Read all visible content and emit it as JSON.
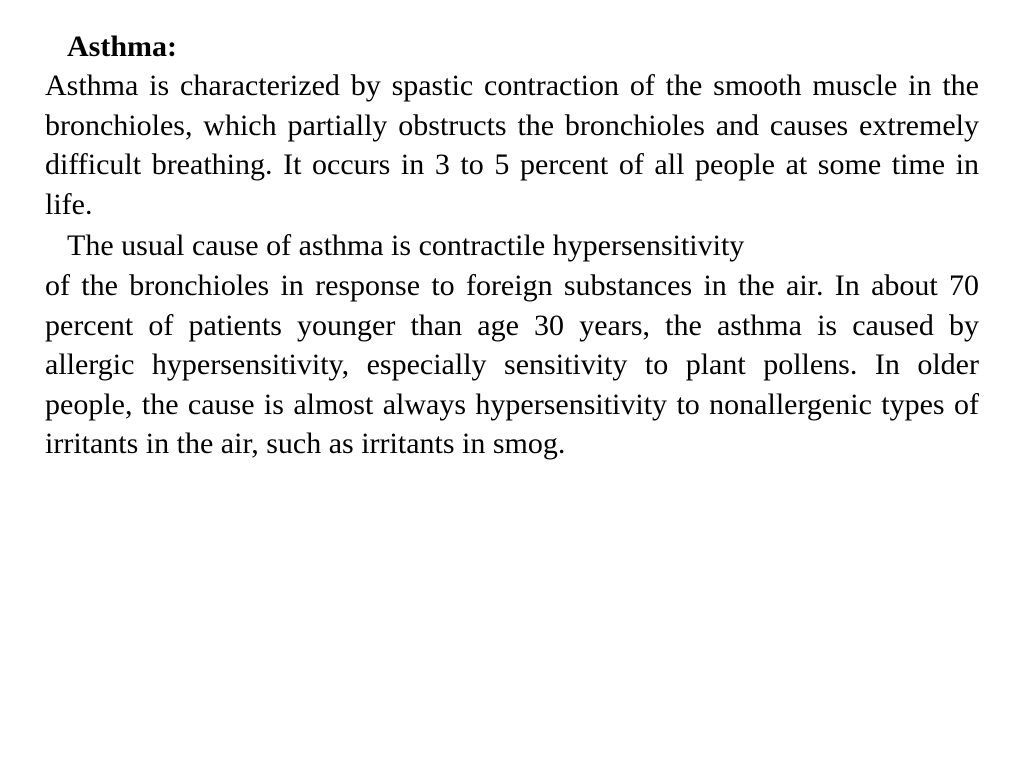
{
  "document": {
    "heading": "Asthma:",
    "paragraph1": "Asthma is characterized by spastic contraction of the smooth muscle in the bronchioles, which partially obstructs the bronchioles and causes extremely difficult breathing. It occurs in 3 to 5 percent of all people at some time in life.",
    "paragraph2_line1": "The usual cause of asthma is contractile hypersensitivity",
    "paragraph2_rest": "of the bronchioles in response to foreign substances in the air. In about 70 percent of patients younger than age 30 years, the asthma is caused by allergic hypersensitivity, especially sensitivity to plant pollens. In older people, the cause is almost always hypersensitivity to nonallergenic types of irritants in the air, such as irritants in smog.",
    "colors": {
      "text": "#000000",
      "background": "#ffffff"
    },
    "font": {
      "family": "Times New Roman",
      "size_pt": 30,
      "heading_weight": "bold"
    }
  }
}
